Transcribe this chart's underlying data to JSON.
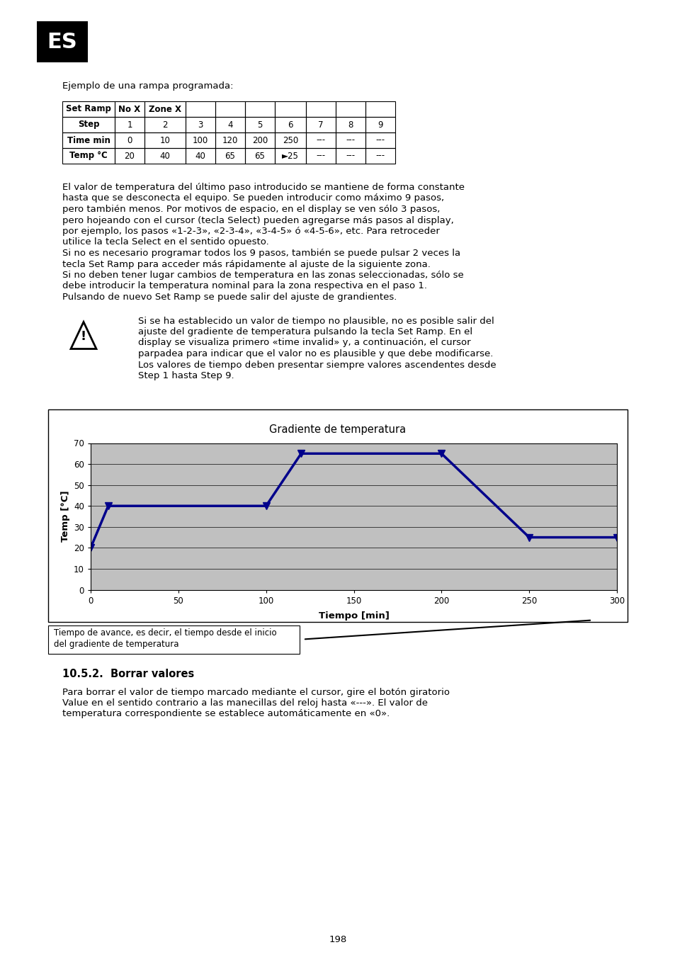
{
  "page_bg": "#ffffff",
  "es_badge_text": "ES",
  "es_badge_bg": "#000000",
  "es_badge_fg": "#ffffff",
  "intro_text": "Ejemplo de una rampa programada:",
  "table_headers": [
    "Set Ramp",
    "No X",
    "Zone X",
    "",
    "",
    "",
    "",
    "",
    "",
    ""
  ],
  "table_rows": [
    [
      "Step",
      "1",
      "2",
      "3",
      "4",
      "5",
      "6",
      "7",
      "8",
      "9"
    ],
    [
      "Time min",
      "0",
      "10",
      "100",
      "120",
      "200",
      "250",
      "---",
      "---",
      "---"
    ],
    [
      "Temp °C",
      "20",
      "40",
      "40",
      "65",
      "65",
      "►25",
      "---",
      "---",
      "---"
    ]
  ],
  "para1_lines": [
    "El valor de temperatura del último paso introducido se mantiene de forma constante",
    "hasta que se desconecta el equipo. Se pueden introducir como máximo 9 pasos,",
    "pero también menos. Por motivos de espacio, en el display se ven sólo 3 pasos,",
    "pero hojeando con el cursor (tecla Select) pueden agregarse más pasos al display,",
    "por ejemplo, los pasos «1-2-3», «2-3-4», «3-4-5» ó «4-5-6», etc. Para retroceder",
    "utilice la tecla Select en el sentido opuesto."
  ],
  "para2_lines": [
    "Si no es necesario programar todos los 9 pasos, también se puede pulsar 2 veces la",
    "tecla Set Ramp para acceder más rápidamente al ajuste de la siguiente zona."
  ],
  "para3_lines": [
    "Si no deben tener lugar cambios de temperatura en las zonas seleccionadas, sólo se",
    "debe introducir la temperatura nominal para la zona respectiva en el paso 1."
  ],
  "para4_lines": [
    "Pulsando de nuevo Set Ramp se puede salir del ajuste de grandientes."
  ],
  "warn_lines": [
    "Si se ha establecido un valor de tiempo no plausible, no es posible salir del",
    "ajuste del gradiente de temperatura pulsando la tecla Set Ramp. En el",
    "display se visualiza primero «time invalid» y, a continuación, el cursor",
    "parpadea para indicar que el valor no es plausible y que debe modificarse.",
    "Los valores de tiempo deben presentar siempre valores ascendentes desde",
    "Step 1 hasta Step 9."
  ],
  "chart_title": "Gradiente de temperatura",
  "chart_x_label": "Tiempo [min]",
  "chart_y_label": "Temp [°C]",
  "chart_x_data": [
    0,
    10,
    100,
    120,
    200,
    250,
    300
  ],
  "chart_y_data": [
    20,
    40,
    40,
    65,
    65,
    25,
    25
  ],
  "chart_line_color": "#00008B",
  "chart_bg_color": "#C0C0C0",
  "chart_xlim": [
    0,
    300
  ],
  "chart_ylim": [
    0,
    70
  ],
  "chart_xticks": [
    0,
    50,
    100,
    150,
    200,
    250,
    300
  ],
  "chart_yticks": [
    0,
    10,
    20,
    30,
    40,
    50,
    60,
    70
  ],
  "callout_text": "Tiempo de avance, es decir, el tiempo desde el inicio\ndel gradiente de temperatura",
  "section_heading": "10.5.2.  Borrar valores",
  "section_body_lines": [
    "Para borrar el valor de tiempo marcado mediante el cursor, gire el botón giratorio",
    "Value en el sentido contrario a las manecillas del reloj hasta «---». El valor de",
    "temperatura correspondiente se establece automáticamente en «0»."
  ],
  "page_number": "198"
}
